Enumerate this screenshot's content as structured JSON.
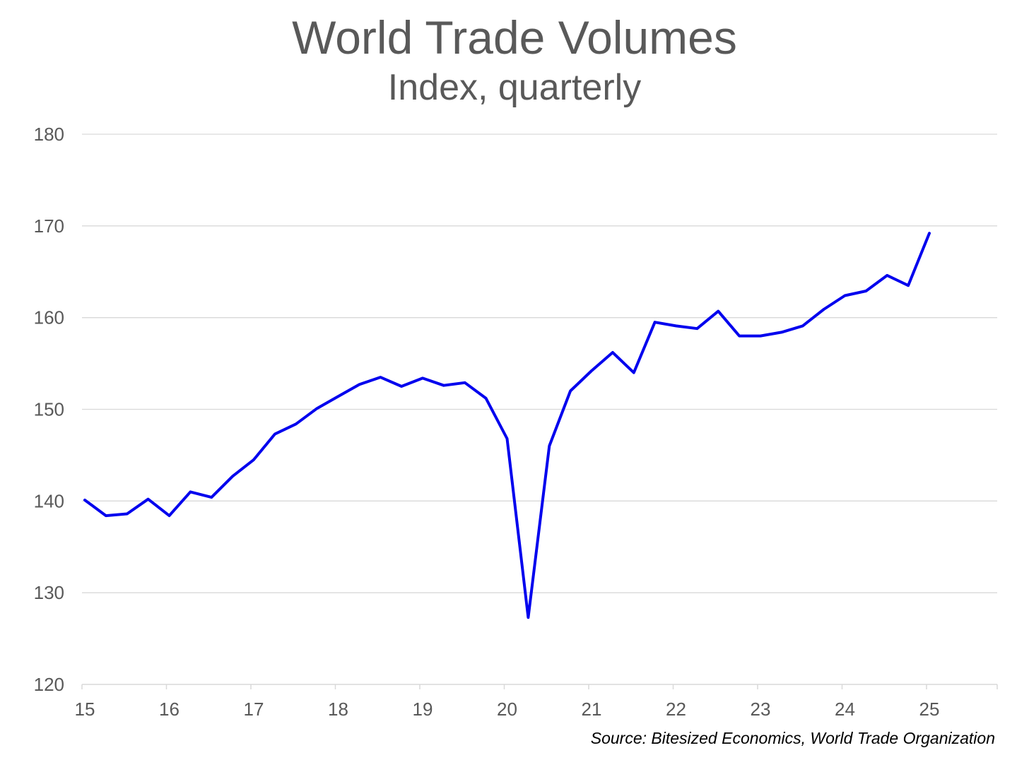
{
  "chart_data": {
    "type": "line",
    "title": "World Trade Volumes",
    "subtitle": "Index, quarterly",
    "source": "Source: Bitesized Economics, World Trade Organization",
    "xlabel": "",
    "ylabel": "",
    "ylim": [
      120,
      180
    ],
    "yticks": [
      120,
      130,
      140,
      150,
      160,
      170,
      180
    ],
    "xlim": [
      15,
      25.83
    ],
    "xticks": [
      15,
      16,
      17,
      18,
      19,
      20,
      21,
      22,
      23,
      24,
      25
    ],
    "xtick_labels": [
      "15",
      "16",
      "17",
      "18",
      "19",
      "20",
      "21",
      "22",
      "23",
      "24",
      "25"
    ],
    "grid": true,
    "series": [
      {
        "name": "World Trade Volumes",
        "color": "#0000ee",
        "x": [
          15,
          15.25,
          15.5,
          15.75,
          16,
          16.25,
          16.5,
          16.75,
          17,
          17.25,
          17.5,
          17.75,
          18,
          18.25,
          18.5,
          18.75,
          19,
          19.25,
          19.5,
          19.75,
          20,
          20.25,
          20.5,
          20.75,
          21,
          21.25,
          21.5,
          21.75,
          22,
          22.25,
          22.5,
          22.75,
          23,
          23.25,
          23.5,
          23.75,
          24,
          24.25,
          24.5,
          24.75,
          25
        ],
        "values": [
          140.1,
          138.4,
          138.6,
          140.2,
          138.4,
          141.0,
          140.4,
          142.7,
          144.5,
          147.3,
          148.4,
          150.1,
          151.4,
          152.7,
          153.5,
          152.5,
          153.4,
          152.6,
          152.9,
          151.2,
          146.8,
          127.3,
          146.0,
          152.0,
          154.2,
          156.2,
          154.0,
          159.5,
          159.1,
          158.8,
          160.7,
          158.0,
          158.0,
          158.4,
          159.1,
          160.9,
          162.4,
          162.9,
          164.6,
          163.5,
          169.2
        ]
      }
    ]
  }
}
